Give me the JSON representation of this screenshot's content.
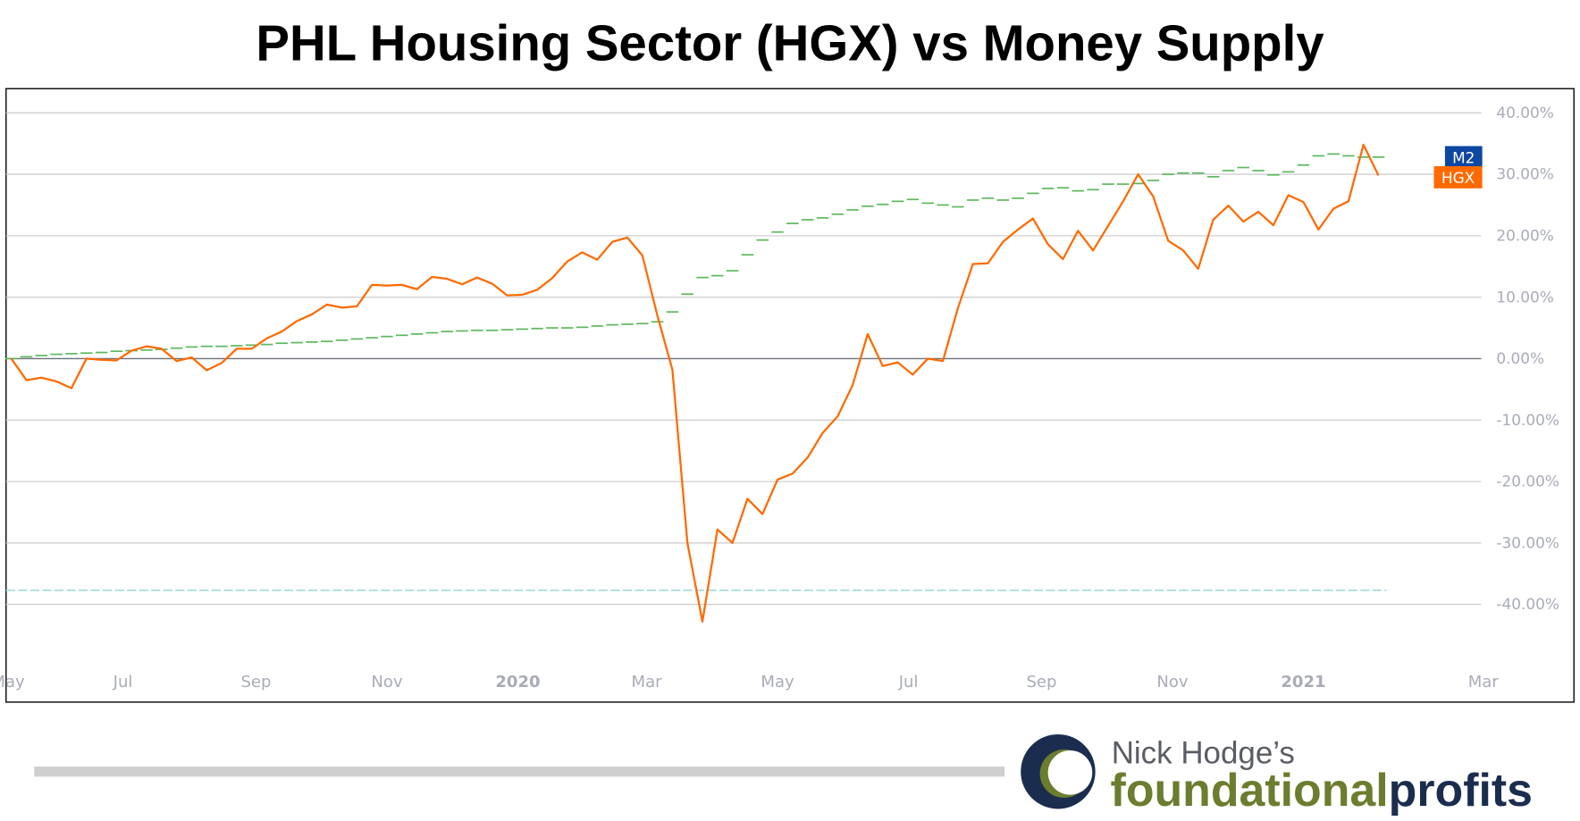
{
  "chart_data": {
    "type": "line",
    "title": "PHL Housing Sector (HGX) vs Money Supply",
    "xlabel": "",
    "ylabel": "",
    "ylim": [
      -50,
      40
    ],
    "y_ticks": [
      "40.00%",
      "30.00%",
      "20.00%",
      "10.00%",
      "0.00%",
      "-10.00%",
      "-20.00%",
      "-30.00%",
      "-40.00%"
    ],
    "y_tick_values": [
      40,
      30,
      20,
      10,
      0,
      -10,
      -20,
      -30,
      -40
    ],
    "x_ticks": [
      {
        "label": "May",
        "date": "2019-05-01",
        "bold": false
      },
      {
        "label": "Jul",
        "date": "2019-07-01",
        "bold": false
      },
      {
        "label": "Sep",
        "date": "2019-09-01",
        "bold": false
      },
      {
        "label": "Nov",
        "date": "2019-11-01",
        "bold": false
      },
      {
        "label": "2020",
        "date": "2020-01-01",
        "bold": true
      },
      {
        "label": "Mar",
        "date": "2020-03-01",
        "bold": false
      },
      {
        "label": "May",
        "date": "2020-05-01",
        "bold": false
      },
      {
        "label": "Jul",
        "date": "2020-07-01",
        "bold": false
      },
      {
        "label": "Sep",
        "date": "2020-09-01",
        "bold": false
      },
      {
        "label": "Nov",
        "date": "2020-11-01",
        "bold": false
      },
      {
        "label": "2021",
        "date": "2021-01-01",
        "bold": true
      },
      {
        "label": "Mar",
        "date": "2021-03-01",
        "bold": false
      }
    ],
    "grid": true,
    "x": [
      "2019-05-10",
      "2019-05-17",
      "2019-05-24",
      "2019-05-31",
      "2019-06-07",
      "2019-06-14",
      "2019-06-21",
      "2019-06-28",
      "2019-07-05",
      "2019-07-12",
      "2019-07-19",
      "2019-07-26",
      "2019-08-02",
      "2019-08-09",
      "2019-08-16",
      "2019-08-23",
      "2019-08-30",
      "2019-09-06",
      "2019-09-13",
      "2019-09-20",
      "2019-09-27",
      "2019-10-04",
      "2019-10-11",
      "2019-10-18",
      "2019-10-25",
      "2019-11-01",
      "2019-11-08",
      "2019-11-15",
      "2019-11-22",
      "2019-11-29",
      "2019-12-06",
      "2019-12-13",
      "2019-12-20",
      "2019-12-27",
      "2020-01-03",
      "2020-01-10",
      "2020-01-17",
      "2020-01-24",
      "2020-01-31",
      "2020-02-07",
      "2020-02-14",
      "2020-02-21",
      "2020-02-28",
      "2020-03-06",
      "2020-03-13",
      "2020-03-20",
      "2020-03-27",
      "2020-04-03",
      "2020-04-10",
      "2020-04-17",
      "2020-04-24",
      "2020-05-01",
      "2020-05-08",
      "2020-05-15",
      "2020-05-22",
      "2020-05-29",
      "2020-06-05",
      "2020-06-12",
      "2020-06-19",
      "2020-06-26",
      "2020-07-03",
      "2020-07-10",
      "2020-07-17",
      "2020-07-24",
      "2020-07-31",
      "2020-08-07",
      "2020-08-14",
      "2020-08-21",
      "2020-08-28",
      "2020-09-04",
      "2020-09-11",
      "2020-09-18",
      "2020-09-25",
      "2020-10-02",
      "2020-10-09",
      "2020-10-16",
      "2020-10-23",
      "2020-10-30",
      "2020-11-06",
      "2020-11-13",
      "2020-11-20",
      "2020-11-27",
      "2020-12-04",
      "2020-12-11",
      "2020-12-18",
      "2020-12-25",
      "2021-01-01",
      "2021-01-08",
      "2021-01-15",
      "2021-01-22",
      "2021-01-29",
      "2021-02-05"
    ],
    "series": [
      {
        "name": "HGX",
        "color": "#ff6a00",
        "style": "solid",
        "values": [
          0,
          -3.5,
          -3.1,
          -3.7,
          -4.8,
          0,
          -0.2,
          -0.3,
          1.3,
          2.0,
          1.6,
          -0.4,
          0.2,
          -1.9,
          -0.7,
          1.6,
          1.6,
          3.3,
          4.4,
          6.1,
          7.2,
          8.8,
          8.3,
          8.5,
          12.0,
          11.9,
          12.0,
          11.3,
          13.3,
          13.0,
          12.1,
          13.2,
          12.2,
          10.3,
          10.4,
          11.2,
          13.1,
          15.8,
          17.3,
          16.1,
          19.0,
          19.7,
          16.8,
          7.0,
          -1.8,
          -30,
          -42.8,
          -27.8,
          -30,
          -22.8,
          -25.3,
          -19.7,
          -18.7,
          -16.1,
          -12.1,
          -9.4,
          -4.3,
          4.0,
          -1.2,
          -0.6,
          -2.6,
          0,
          -0.4,
          8.2,
          15.4,
          15.5,
          19.0,
          21.0,
          22.8,
          18.6,
          16.2,
          20.8,
          17.6,
          21.6,
          25.6,
          30.0,
          26.4,
          19.2,
          17.6,
          14.6,
          22.6,
          24.9,
          22.3,
          23.9,
          21.7,
          26.6,
          25.5,
          21.0,
          24.4,
          25.6,
          34.8,
          29.8
        ]
      },
      {
        "name": "M2",
        "color": "#5cb85c",
        "tag_color": "#0d47a1",
        "style": "dashed",
        "values": [
          0,
          0.3,
          0.5,
          0.7,
          0.8,
          0.9,
          1.0,
          1.2,
          1.3,
          1.4,
          1.5,
          1.7,
          1.9,
          2.0,
          2.0,
          2.1,
          2.2,
          2.3,
          2.5,
          2.6,
          2.7,
          2.8,
          3.0,
          3.2,
          3.4,
          3.6,
          3.8,
          4.0,
          4.2,
          4.4,
          4.5,
          4.6,
          4.6,
          4.7,
          4.8,
          4.9,
          5.0,
          5.0,
          5.1,
          5.3,
          5.5,
          5.6,
          5.7,
          6.0,
          7.6,
          10.5,
          13.2,
          13.5,
          14.3,
          16.9,
          19.3,
          20.6,
          22.0,
          22.6,
          22.9,
          23.5,
          24.2,
          24.8,
          25.1,
          25.6,
          25.9,
          25.3,
          25.0,
          24.7,
          25.8,
          26.1,
          25.8,
          26.1,
          26.9,
          27.7,
          27.8,
          27.3,
          27.5,
          28.4,
          28.4,
          28.5,
          29.0,
          30.0,
          30.2,
          30.2,
          29.6,
          30.6,
          31.1,
          30.6,
          29.9,
          30.4,
          31.5,
          33.0,
          33.3,
          33.0,
          32.8,
          32.8
        ]
      }
    ],
    "reference_line": {
      "value": -37.7,
      "color": "#a8dcd6"
    }
  },
  "footer": {
    "logo_line1": "Nick Hodge’s",
    "logo_word1": "foundational",
    "logo_word2": "profits",
    "colors": {
      "navy": "#1b2d4f",
      "olive": "#6b7d2e"
    }
  }
}
